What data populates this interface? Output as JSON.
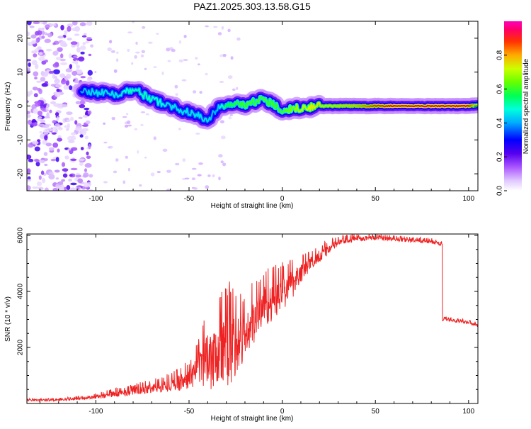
{
  "figure": {
    "title": "PAZ1.2025.303.13.58.G15"
  },
  "colors": {
    "snr_line": "#ee2222",
    "axis": "#000000",
    "background": "#ffffff"
  },
  "chart_data": [
    {
      "type": "heatmap",
      "id": "spectrogram",
      "title": "PAZ1.2025.303.13.58.G15",
      "xlabel": "Height of straight line (km)",
      "ylabel": "Frequency (Hz)",
      "xlim": [
        -137,
        105
      ],
      "ylim": [
        -25,
        25
      ],
      "xticks": [
        -100,
        -50,
        0,
        50,
        100
      ],
      "yticks": [
        -20,
        -10,
        0,
        10,
        20
      ],
      "xtick_labels": [
        "-100",
        "-50",
        "0",
        "50",
        "100"
      ],
      "ytick_labels": [
        "-20",
        "-10",
        "0",
        "10",
        "20"
      ],
      "ridge_x": [
        -108,
        -100,
        -90,
        -80,
        -70,
        -60,
        -50,
        -40,
        -35,
        -30,
        -20,
        -10,
        0,
        10,
        20,
        40,
        60,
        80,
        100,
        105
      ],
      "ridge_freq": [
        5,
        4,
        3.5,
        5,
        2,
        0,
        -2,
        -4,
        -1,
        0.5,
        0.5,
        2,
        -1,
        -0.5,
        0,
        0,
        0,
        0,
        0,
        0.3
      ],
      "ridge_amplitude": [
        0.4,
        0.45,
        0.45,
        0.5,
        0.5,
        0.45,
        0.45,
        0.45,
        0.4,
        0.55,
        0.6,
        0.6,
        0.6,
        0.7,
        0.75,
        0.8,
        0.95,
        0.95,
        0.95,
        0.7
      ],
      "noise_region_x": [
        -137,
        -103
      ],
      "colorbar": {
        "label": "Normalized spectral amplitude",
        "range": [
          0,
          1
        ],
        "ticks": [
          0.0,
          0.2,
          0.4,
          0.6,
          0.8
        ],
        "tick_labels": [
          "0.0",
          "0.2",
          "0.4",
          "0.6",
          "0.8"
        ]
      }
    },
    {
      "type": "line",
      "id": "snr",
      "xlabel": "Height of straight line (km)",
      "ylabel": "SNR (10 * v/v)",
      "xlim": [
        -137,
        105
      ],
      "ylim": [
        0,
        6050
      ],
      "xticks": [
        -100,
        -50,
        0,
        50,
        100
      ],
      "yticks": [
        2000,
        4000,
        6000
      ],
      "xtick_labels": [
        "-100",
        "-50",
        "0",
        "50",
        "100"
      ],
      "ytick_labels": [
        "2000",
        "4000",
        "6000"
      ],
      "series": [
        {
          "name": "SNR",
          "x": [
            -137,
            -120,
            -105,
            -90,
            -80,
            -70,
            -60,
            -50,
            -45,
            -40,
            -35,
            -30,
            -25,
            -20,
            -15,
            -10,
            -5,
            0,
            5,
            10,
            15,
            20,
            30,
            40,
            50,
            60,
            70,
            80,
            85,
            86,
            90,
            100,
            105
          ],
          "y": [
            120,
            130,
            200,
            350,
            450,
            550,
            700,
            900,
            1300,
            1700,
            2000,
            2000,
            2200,
            2400,
            3000,
            3600,
            3700,
            4000,
            4300,
            4700,
            5000,
            5300,
            5750,
            5900,
            5920,
            5880,
            5820,
            5780,
            5700,
            3000,
            2980,
            2900,
            2800
          ],
          "noise_amplitude": [
            40,
            40,
            60,
            120,
            150,
            200,
            260,
            400,
            600,
            1200,
            1500,
            1500,
            1300,
            1000,
            900,
            800,
            800,
            700,
            600,
            400,
            300,
            250,
            150,
            100,
            80,
            80,
            80,
            80,
            80,
            60,
            60,
            60,
            60
          ]
        }
      ]
    }
  ]
}
